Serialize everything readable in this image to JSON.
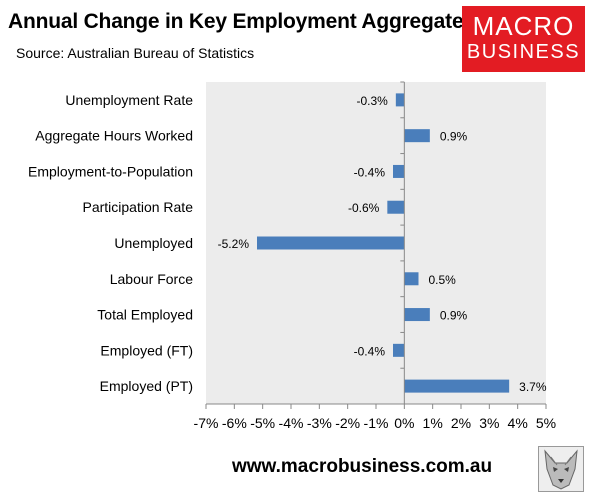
{
  "header": {
    "title": "Annual Change in Key Employment Aggregates",
    "source": "Source: Australian Bureau of Statistics"
  },
  "logo": {
    "line1": "MACRO",
    "line2": "BUSINESS"
  },
  "footer": {
    "url": "www.macrobusiness.com.au"
  },
  "colors": {
    "bar": "#4a7ebb",
    "plot_bg": "#ececec",
    "logo_bg": "#e31c23"
  },
  "chart_data": {
    "type": "bar",
    "orientation": "horizontal",
    "title": "Annual Change in Key Employment Aggregates",
    "categories": [
      "Unemployment Rate",
      "Aggregate Hours Worked",
      "Employment-to-Population",
      "Participation Rate",
      "Unemployed",
      "Labour Force",
      "Total Employed",
      "Employed (FT)",
      "Employed (PT)"
    ],
    "values": [
      -0.3,
      0.9,
      -0.4,
      -0.6,
      -5.2,
      0.5,
      0.9,
      -0.4,
      3.7
    ],
    "value_labels": [
      "-0.3%",
      "0.9%",
      "-0.4%",
      "-0.6%",
      "-5.2%",
      "0.5%",
      "0.9%",
      "-0.4%",
      "3.7%"
    ],
    "xlim": [
      -7,
      5
    ],
    "xticks": [
      -7,
      -6,
      -5,
      -4,
      -3,
      -2,
      -1,
      0,
      1,
      2,
      3,
      4,
      5
    ],
    "xtick_labels": [
      "-7%",
      "-6%",
      "-5%",
      "-4%",
      "-3%",
      "-2%",
      "-1%",
      "0%",
      "1%",
      "2%",
      "3%",
      "4%",
      "5%"
    ],
    "grid": false,
    "legend": "none"
  }
}
